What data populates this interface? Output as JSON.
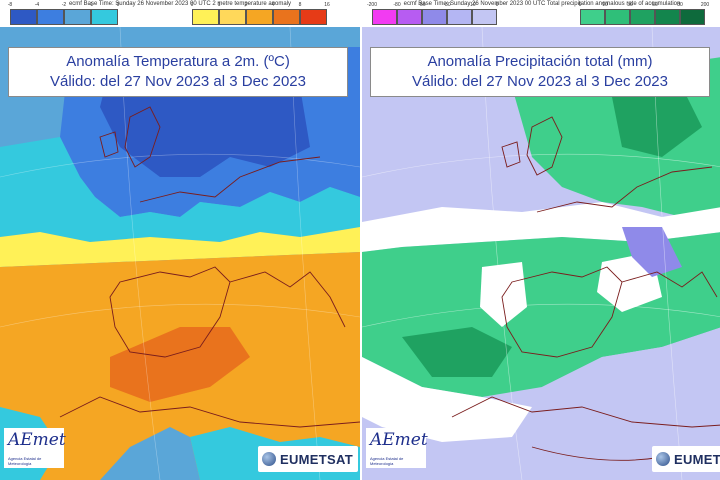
{
  "colors": {
    "temp_bg_blue": "#5aa6d8",
    "temp_cold_dark": "#2e59c4",
    "temp_cold_mid": "#3d7ee0",
    "temp_cyan": "#34c9de",
    "temp_yellow": "#fff157",
    "temp_orange": "#f5a623",
    "temp_orange_dark": "#e9731d",
    "temp_red": "#e63b17",
    "prec_lavender": "#c3c6f3",
    "prec_purple": "#8f8ae9",
    "prec_green": "#3fcf8b",
    "prec_green_dark": "#1fa261",
    "prec_white": "#ffffff",
    "outline_coast": "#7a1d1d",
    "title_text": "#2a3fa0"
  },
  "left_panel": {
    "header": "ecmf  Base Time: Sunday 26 November 2023 00 UTC 2 metre temperature anomaly",
    "colorbar": {
      "cold": {
        "ticks": [
          "-8",
          "-4",
          "-2",
          "-1",
          "0"
        ],
        "colors": [
          "#2e59c4",
          "#3d7ee0",
          "#5aa6d8",
          "#34c9de"
        ]
      },
      "warm": {
        "ticks": [
          "0",
          "1",
          "2",
          "4",
          "8",
          "16"
        ],
        "colors": [
          "#fff157",
          "#ffd85a",
          "#f5a623",
          "#e9731d",
          "#e63b17"
        ]
      }
    },
    "title_line1": "Anomalía Temperatura a 2m. (ºC)",
    "title_line2": "Válido: del 27 Nov 2023 al 3 Dec 2023",
    "logo_aemet": "AEmet",
    "logo_aemet_sub": "Agencia Estatal de Meteorología",
    "logo_eumetsat": "EUMETSAT",
    "icon": "globe-icon"
  },
  "right_panel": {
    "header": "ecmf  Base Time: Sunday 26 November 2023 00 UTC Total precipitation anomalous rate of accumulation",
    "colorbar": {
      "dry": {
        "ticks": [
          "-200",
          "-80",
          "-50",
          "-30",
          "-10",
          "0"
        ],
        "colors": [
          "#f23bf2",
          "#b75cf2",
          "#8f8ae9",
          "#b4b6f3",
          "#c3c6f3"
        ]
      },
      "wet": {
        "ticks": [
          "0",
          "10",
          "30",
          "50",
          "80",
          "200"
        ],
        "colors": [
          "#3fcf8b",
          "#2fbf79",
          "#1fa261",
          "#13854d",
          "#0e6a3c"
        ]
      }
    },
    "title_line1": "Anomalía Precipitación total (mm)",
    "title_line2": "Válido: del 27 Nov 2023 al 3 Dec 2023",
    "logo_aemet": "AEmet",
    "logo_aemet_sub": "Agencia Estatal de Meteorología",
    "logo_eumetsat": "EUMET",
    "icon": "globe-icon"
  }
}
